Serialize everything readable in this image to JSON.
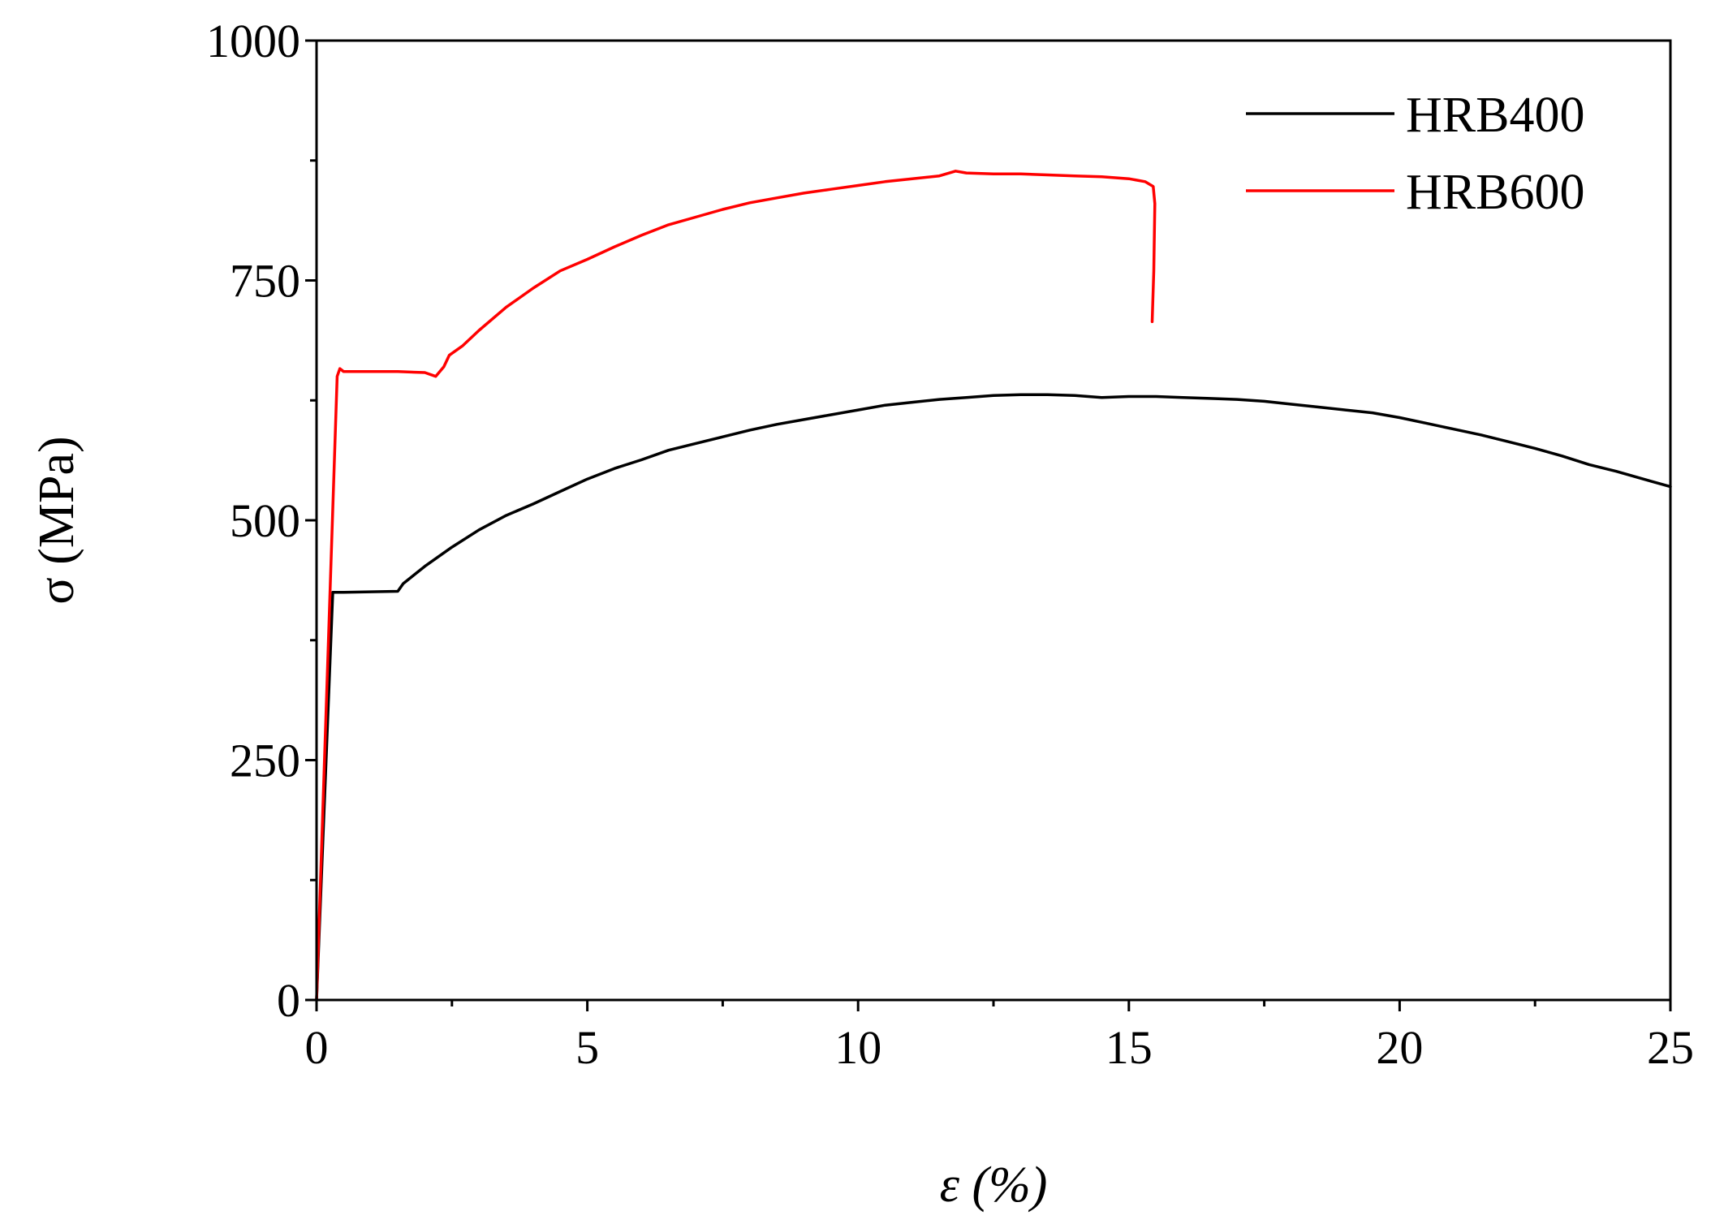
{
  "chart_data": {
    "type": "line",
    "title": "",
    "xlabel": "ε (%)",
    "ylabel": "σ (MPa)",
    "xlim": [
      0,
      25
    ],
    "ylim": [
      0,
      1000
    ],
    "x_ticks": [
      "0",
      "5",
      "10",
      "15",
      "20",
      "25"
    ],
    "y_ticks": [
      "0",
      "250",
      "500",
      "750",
      "1000"
    ],
    "grid": false,
    "legend_position": "top-right",
    "series": [
      {
        "name": "HRB400",
        "color": "#000000",
        "points": [
          [
            0,
            0
          ],
          [
            0.3,
            425
          ],
          [
            0.5,
            425
          ],
          [
            1.5,
            426
          ],
          [
            1.6,
            434
          ],
          [
            2.0,
            452
          ],
          [
            2.5,
            472
          ],
          [
            3.0,
            490
          ],
          [
            3.5,
            505
          ],
          [
            4.0,
            517
          ],
          [
            4.5,
            530
          ],
          [
            5.0,
            543
          ],
          [
            5.5,
            554
          ],
          [
            6.0,
            563
          ],
          [
            6.5,
            573
          ],
          [
            7.0,
            580
          ],
          [
            7.5,
            587
          ],
          [
            8.0,
            594
          ],
          [
            8.5,
            600
          ],
          [
            9.0,
            605
          ],
          [
            9.5,
            610
          ],
          [
            10.0,
            615
          ],
          [
            10.5,
            620
          ],
          [
            11.0,
            623
          ],
          [
            11.5,
            626
          ],
          [
            12.0,
            628
          ],
          [
            12.5,
            630
          ],
          [
            13.0,
            631
          ],
          [
            13.5,
            631
          ],
          [
            14.0,
            630
          ],
          [
            14.5,
            628
          ],
          [
            15.0,
            629
          ],
          [
            15.5,
            629
          ],
          [
            16.0,
            628
          ],
          [
            16.5,
            627
          ],
          [
            17.0,
            626
          ],
          [
            17.5,
            624
          ],
          [
            18.0,
            621
          ],
          [
            18.5,
            618
          ],
          [
            19.0,
            615
          ],
          [
            19.5,
            612
          ],
          [
            20.0,
            607
          ],
          [
            20.5,
            601
          ],
          [
            21.0,
            595
          ],
          [
            21.5,
            589
          ],
          [
            22.0,
            582
          ],
          [
            22.5,
            575
          ],
          [
            23.0,
            567
          ],
          [
            23.5,
            558
          ],
          [
            24.0,
            551
          ],
          [
            24.5,
            543
          ],
          [
            25.0,
            535
          ]
        ]
      },
      {
        "name": "HRB600",
        "color": "#ff0000",
        "points": [
          [
            0,
            0
          ],
          [
            0.38,
            650
          ],
          [
            0.43,
            658
          ],
          [
            0.5,
            655
          ],
          [
            1.0,
            655
          ],
          [
            1.5,
            655
          ],
          [
            2.0,
            654
          ],
          [
            2.2,
            650
          ],
          [
            2.35,
            660
          ],
          [
            2.45,
            672
          ],
          [
            2.7,
            682
          ],
          [
            3.0,
            698
          ],
          [
            3.5,
            722
          ],
          [
            4.0,
            742
          ],
          [
            4.5,
            760
          ],
          [
            5.0,
            772
          ],
          [
            5.5,
            785
          ],
          [
            6.0,
            797
          ],
          [
            6.5,
            808
          ],
          [
            7.0,
            816
          ],
          [
            7.5,
            824
          ],
          [
            8.0,
            831
          ],
          [
            8.5,
            836
          ],
          [
            9.0,
            841
          ],
          [
            9.5,
            845
          ],
          [
            10.0,
            849
          ],
          [
            10.5,
            853
          ],
          [
            11.0,
            856
          ],
          [
            11.5,
            859
          ],
          [
            11.8,
            864
          ],
          [
            12.0,
            862
          ],
          [
            12.5,
            861
          ],
          [
            13.0,
            861
          ],
          [
            13.5,
            860
          ],
          [
            14.0,
            859
          ],
          [
            14.5,
            858
          ],
          [
            15.0,
            856
          ],
          [
            15.3,
            853
          ],
          [
            15.45,
            848
          ],
          [
            15.48,
            830
          ],
          [
            15.46,
            760
          ],
          [
            15.43,
            707
          ]
        ]
      }
    ]
  }
}
